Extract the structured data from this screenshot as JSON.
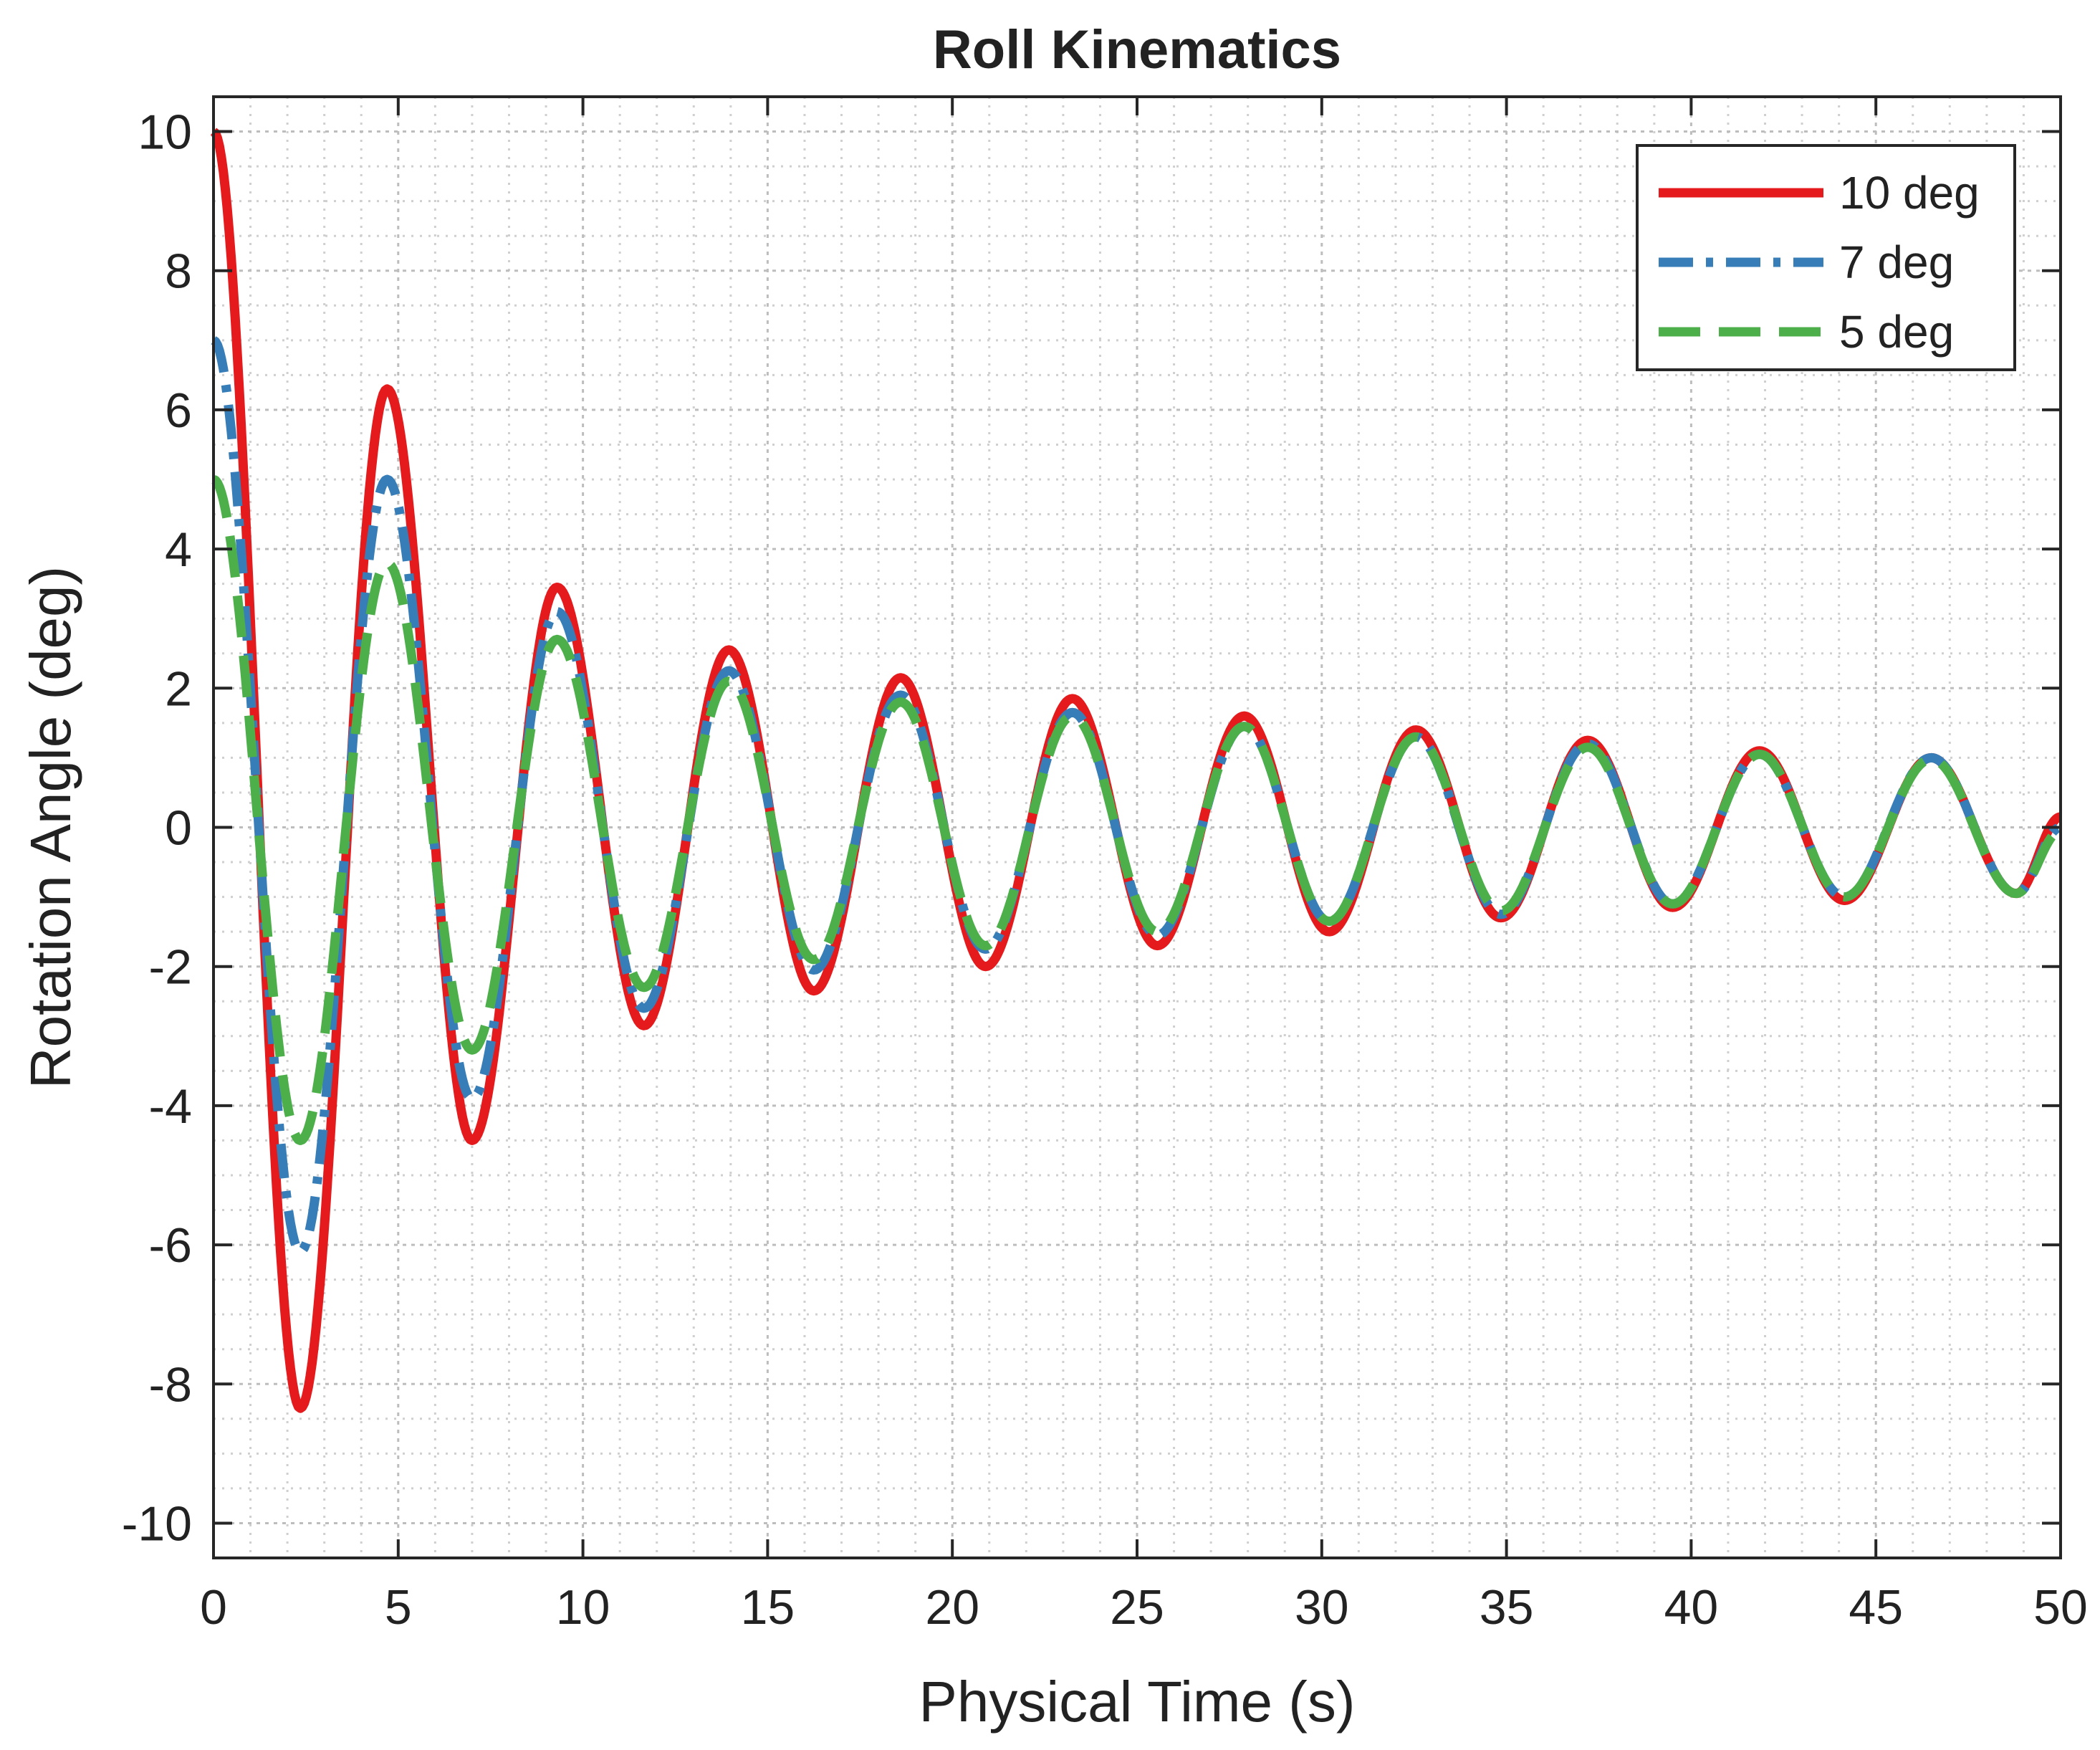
{
  "chart_data": {
    "type": "line",
    "title": "Roll Kinematics",
    "xlabel": "Physical Time (s)",
    "ylabel": "Rotation Angle (deg)",
    "xlim": [
      0,
      50
    ],
    "ylim": [
      -10.5,
      10.5
    ],
    "xticks": [
      0,
      5,
      10,
      15,
      20,
      25,
      30,
      35,
      40,
      45,
      50
    ],
    "xtick_labels": [
      "0",
      "5",
      "10",
      "15",
      "20",
      "25",
      "30",
      "35",
      "40",
      "45",
      "50"
    ],
    "yticks": [
      10,
      8,
      6,
      4,
      2,
      0,
      -2,
      -4,
      -6,
      -8,
      -10
    ],
    "ytick_labels": [
      "10",
      "8",
      "6",
      "4",
      "2",
      "0",
      "-2",
      "-4",
      "-6",
      "-8",
      "-10"
    ],
    "grid": true,
    "minor_grid": true,
    "legend_position": "top-right",
    "series": [
      {
        "name": "10 deg",
        "color": "#e41a1c",
        "style": "solid",
        "extrema": [
          [
            0,
            10
          ],
          [
            2.35,
            -8.35
          ],
          [
            4.7,
            6.3
          ],
          [
            7.0,
            -4.5
          ],
          [
            9.3,
            3.45
          ],
          [
            11.65,
            -2.85
          ],
          [
            13.95,
            2.55
          ],
          [
            16.25,
            -2.35
          ],
          [
            18.6,
            2.15
          ],
          [
            20.9,
            -2.0
          ],
          [
            23.25,
            1.85
          ],
          [
            25.55,
            -1.7
          ],
          [
            27.9,
            1.6
          ],
          [
            30.2,
            -1.5
          ],
          [
            32.55,
            1.4
          ],
          [
            34.85,
            -1.3
          ],
          [
            37.2,
            1.25
          ],
          [
            39.5,
            -1.15
          ],
          [
            41.85,
            1.1
          ],
          [
            44.15,
            -1.05
          ],
          [
            46.5,
            1.0
          ],
          [
            48.8,
            -0.95
          ],
          [
            50,
            0.15
          ]
        ]
      },
      {
        "name": "7 deg",
        "color": "#377eb8",
        "style": "dashdot",
        "extrema": [
          [
            0,
            7
          ],
          [
            2.35,
            -6.1
          ],
          [
            4.7,
            5.0
          ],
          [
            7.0,
            -3.9
          ],
          [
            9.3,
            3.1
          ],
          [
            11.65,
            -2.6
          ],
          [
            13.95,
            2.25
          ],
          [
            16.25,
            -2.05
          ],
          [
            18.6,
            1.9
          ],
          [
            20.9,
            -1.75
          ],
          [
            23.25,
            1.65
          ],
          [
            25.55,
            -1.55
          ],
          [
            27.9,
            1.45
          ],
          [
            30.2,
            -1.35
          ],
          [
            32.55,
            1.3
          ],
          [
            34.85,
            -1.25
          ],
          [
            37.2,
            1.2
          ],
          [
            39.5,
            -1.1
          ],
          [
            41.85,
            1.05
          ],
          [
            44.15,
            -1.0
          ],
          [
            46.5,
            1.0
          ],
          [
            48.8,
            -0.95
          ],
          [
            50,
            0.0
          ]
        ]
      },
      {
        "name": "5 deg",
        "color": "#4daf4a",
        "style": "dashed",
        "extrema": [
          [
            0,
            5
          ],
          [
            2.35,
            -4.5
          ],
          [
            4.7,
            3.8
          ],
          [
            7.0,
            -3.2
          ],
          [
            9.3,
            2.7
          ],
          [
            11.65,
            -2.3
          ],
          [
            13.95,
            2.1
          ],
          [
            16.25,
            -1.9
          ],
          [
            18.6,
            1.8
          ],
          [
            20.9,
            -1.7
          ],
          [
            23.25,
            1.6
          ],
          [
            25.55,
            -1.5
          ],
          [
            27.9,
            1.45
          ],
          [
            30.2,
            -1.35
          ],
          [
            32.55,
            1.3
          ],
          [
            34.85,
            -1.2
          ],
          [
            37.2,
            1.15
          ],
          [
            39.5,
            -1.1
          ],
          [
            41.85,
            1.05
          ],
          [
            44.15,
            -1.0
          ],
          [
            46.5,
            0.98
          ],
          [
            48.8,
            -0.95
          ],
          [
            50,
            -0.05
          ]
        ]
      }
    ]
  }
}
